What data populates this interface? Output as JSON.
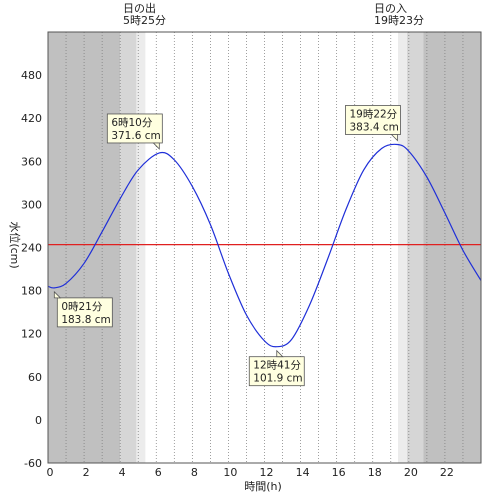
{
  "chart_data": {
    "type": "line",
    "title": "",
    "xlabel": "時間(h)",
    "ylabel": "水位(cm)",
    "xlim": [
      0,
      24
    ],
    "ylim": [
      -60,
      540
    ],
    "x_ticks": [
      0,
      2,
      4,
      6,
      8,
      10,
      12,
      14,
      16,
      18,
      20,
      22
    ],
    "y_ticks": [
      -60,
      0,
      60,
      120,
      180,
      240,
      300,
      360,
      420,
      480
    ],
    "grid": "vertical dotted every 1 h",
    "reference_line": {
      "value": 244,
      "color": "#e02020"
    },
    "colors": {
      "series": "#1f2fd8",
      "night": "#c0c0c0",
      "twilight_dark": "#d6d6d6",
      "twilight_light": "#ececec",
      "day": "#ffffff",
      "callout_bg": "#ffffe0"
    },
    "shading": {
      "sunrise_decimal": 5.4167,
      "sunset_decimal": 19.3833,
      "night_end": 4.0,
      "twilight1_end": 4.9,
      "morning_end": 5.4,
      "evening_start": 19.4,
      "twilight2_start": 19.9,
      "night_start": 20.8
    },
    "sun_labels": {
      "sunrise_title": "日の出",
      "sunrise_time": "5時25分",
      "sunset_title": "日の入",
      "sunset_time": "19時23分"
    },
    "series": [
      {
        "x": [
          0,
          0.35,
          1,
          2,
          3,
          4,
          5,
          6.17,
          7,
          8,
          9,
          10,
          11,
          12,
          12.68,
          13.5,
          14.5,
          15.5,
          16.5,
          17.5,
          18.5,
          19.37,
          20,
          21,
          22,
          23,
          24
        ],
        "values": [
          186,
          183.8,
          190,
          218,
          262,
          308,
          348,
          371.6,
          362,
          325,
          272,
          204,
          146,
          110,
          101.9,
          112,
          160,
          224,
          292,
          348,
          378,
          383.4,
          374,
          338,
          288,
          236,
          194
        ]
      }
    ],
    "extremes": [
      {
        "time": "0時21分",
        "level": "183.8 cm",
        "x": 0.35,
        "y": 183.8,
        "place": "below"
      },
      {
        "time": "6時10分",
        "level": "371.6 cm",
        "x": 6.17,
        "y": 371.6,
        "place": "above"
      },
      {
        "time": "12時41分",
        "level": "101.9 cm",
        "x": 12.68,
        "y": 101.9,
        "place": "below"
      },
      {
        "time": "19時22分",
        "level": "383.4 cm",
        "x": 19.37,
        "y": 383.4,
        "place": "above"
      }
    ]
  }
}
